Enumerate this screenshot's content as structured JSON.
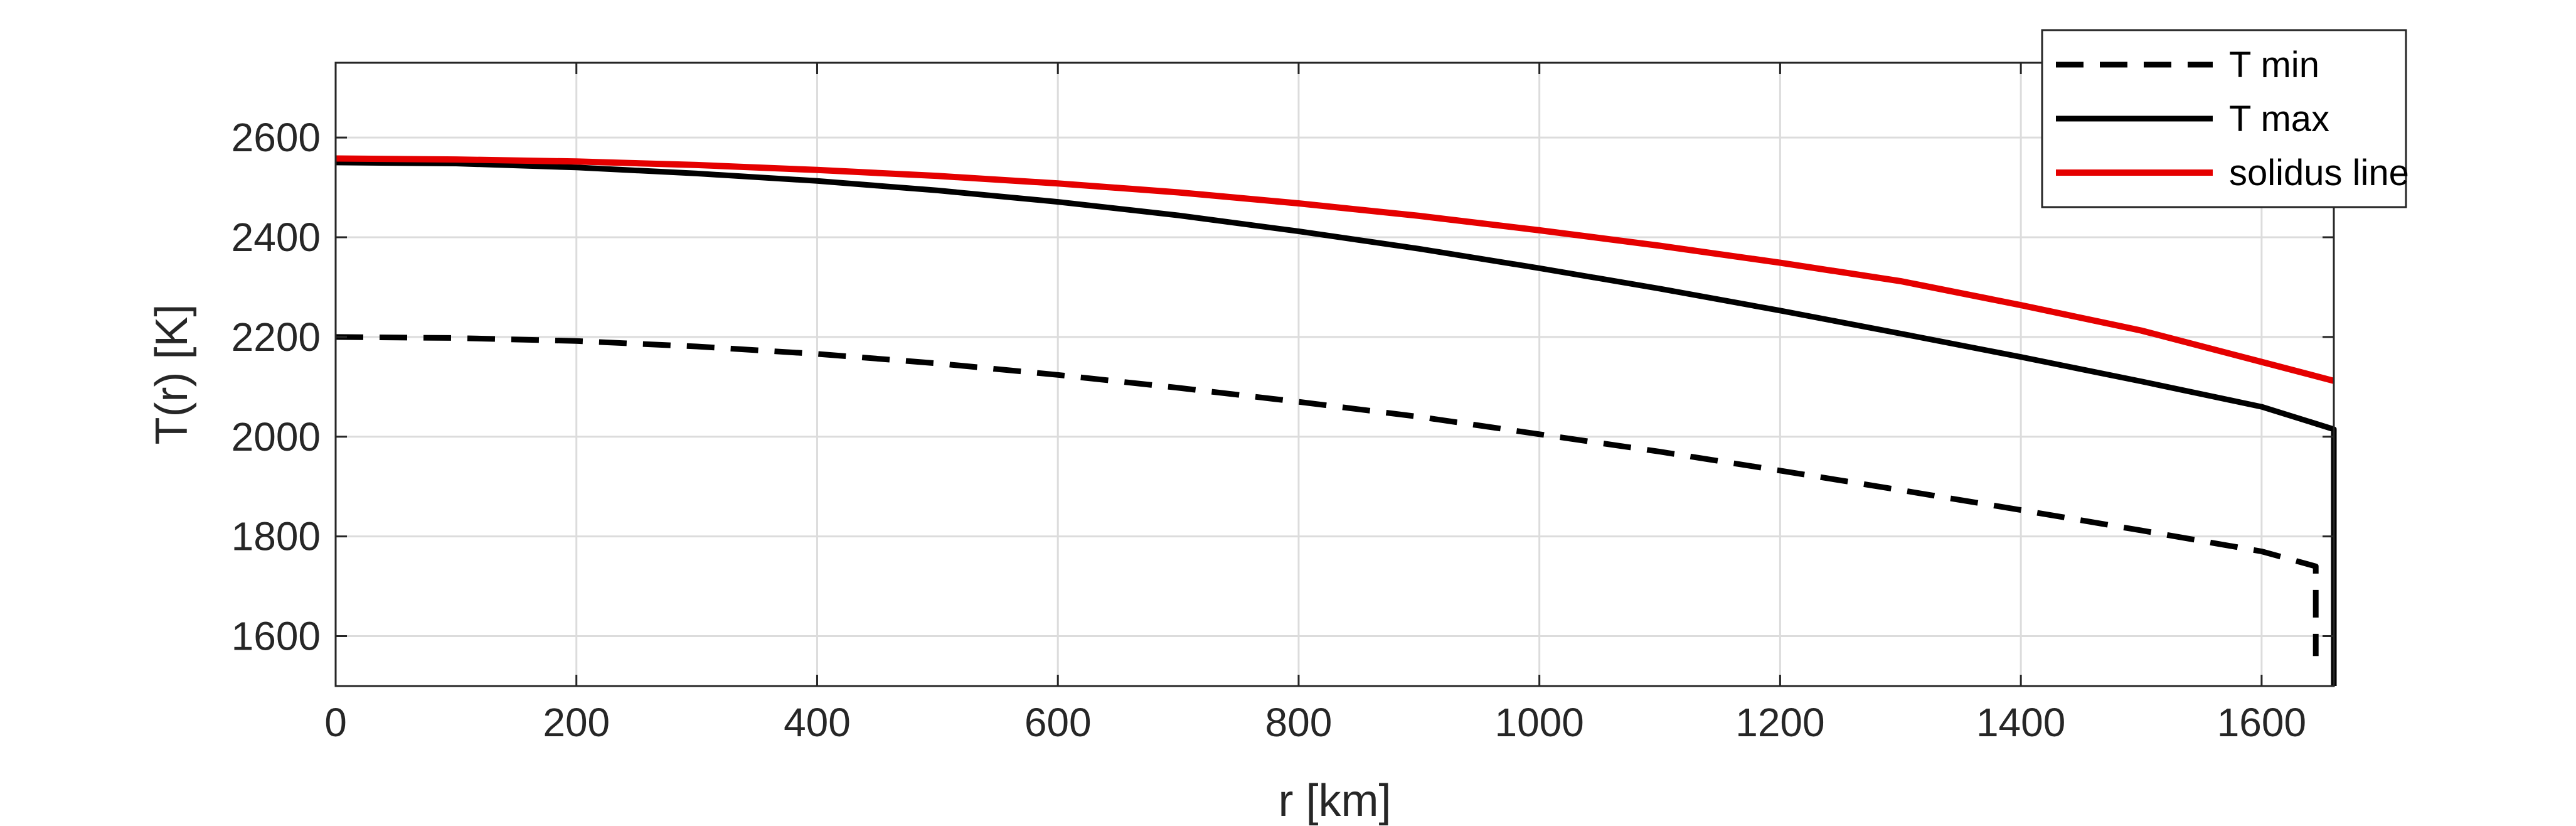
{
  "chart_data": {
    "type": "line",
    "xlabel": "r [km]",
    "ylabel": "T(r) [K]",
    "xlim": [
      0,
      1660
    ],
    "ylim": [
      1500,
      2750
    ],
    "x_ticks": [
      0,
      200,
      400,
      600,
      800,
      1000,
      1200,
      1400,
      1600
    ],
    "y_ticks": [
      1600,
      1800,
      2000,
      2200,
      2400,
      2600
    ],
    "grid": true,
    "legend_position": "top-right",
    "series": [
      {
        "name": "T min",
        "style": "dashed",
        "color": "#000000",
        "x": [
          0,
          100,
          200,
          300,
          400,
          500,
          600,
          700,
          800,
          900,
          1000,
          1100,
          1200,
          1300,
          1400,
          1500,
          1600,
          1645,
          1645,
          1645
        ],
        "y": [
          2200,
          2198,
          2192,
          2181,
          2166,
          2147,
          2124,
          2098,
          2070,
          2040,
          2005,
          1970,
          1932,
          1893,
          1853,
          1812,
          1770,
          1740,
          1650,
          1560
        ]
      },
      {
        "name": "T max",
        "style": "solid",
        "color": "#000000",
        "x": [
          0,
          100,
          200,
          300,
          400,
          500,
          600,
          700,
          800,
          900,
          1000,
          1100,
          1200,
          1300,
          1400,
          1500,
          1600,
          1660,
          1660
        ],
        "y": [
          2550,
          2548,
          2540,
          2528,
          2513,
          2494,
          2471,
          2444,
          2412,
          2377,
          2338,
          2297,
          2253,
          2207,
          2160,
          2111,
          2060,
          2015,
          1500
        ]
      },
      {
        "name": "solidus line",
        "style": "solid",
        "color": "#e50000",
        "x": [
          0,
          100,
          200,
          300,
          400,
          500,
          600,
          700,
          800,
          900,
          1000,
          1100,
          1200,
          1300,
          1400,
          1500,
          1600,
          1660
        ],
        "y": [
          2558,
          2556,
          2552,
          2545,
          2535,
          2523,
          2508,
          2490,
          2468,
          2443,
          2414,
          2383,
          2349,
          2312,
          2264,
          2213,
          2150,
          2112
        ]
      }
    ]
  }
}
